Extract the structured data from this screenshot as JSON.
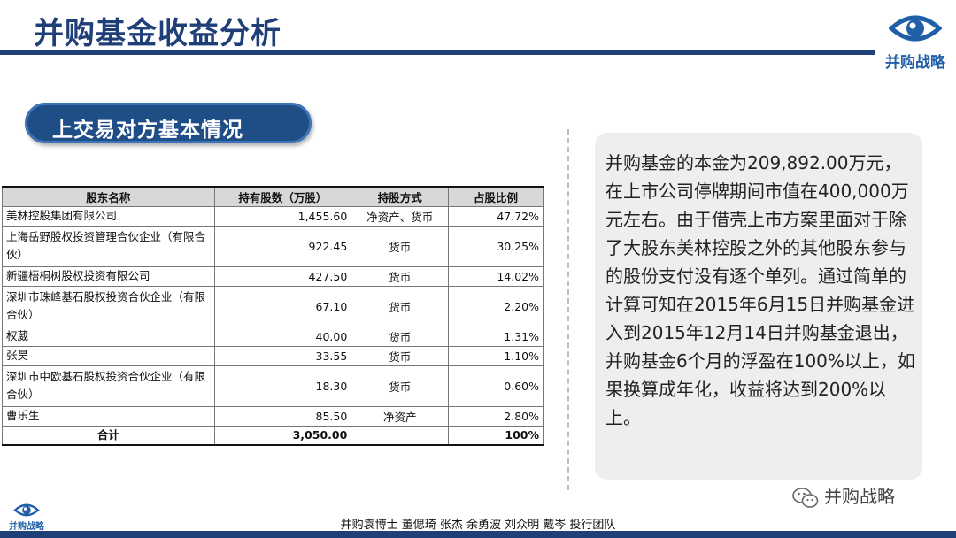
{
  "page": {
    "title": "并购基金收益分析"
  },
  "brand": {
    "logo_text": "并购战略",
    "wechat_text": "并购战略"
  },
  "section": {
    "title": "上交易对方基本情况"
  },
  "table": {
    "headers": [
      "股东名称",
      "持有股数（万股）",
      "持股方式",
      "占股比例"
    ],
    "rows": [
      {
        "name": "美林控股集团有限公司",
        "shares": "1,455.60",
        "mode": "净资产、货币",
        "pct": "47.72%",
        "tall": false
      },
      {
        "name": "上海岳野股权投资管理合伙企业（有限合伙）",
        "shares": "922.45",
        "mode": "货币",
        "pct": "30.25%",
        "tall": true
      },
      {
        "name": "新疆梧桐树股权投资有限公司",
        "shares": "427.50",
        "mode": "货币",
        "pct": "14.02%",
        "tall": false
      },
      {
        "name": "深圳市珠峰基石股权投资合伙企业（有限合伙）",
        "shares": "67.10",
        "mode": "货币",
        "pct": "2.20%",
        "tall": true
      },
      {
        "name": "权葳",
        "shares": "40.00",
        "mode": "货币",
        "pct": "1.31%",
        "tall": false
      },
      {
        "name": "张昊",
        "shares": "33.55",
        "mode": "货币",
        "pct": "1.10%",
        "tall": false
      },
      {
        "name": "深圳市中欧基石股权投资合伙企业（有限合伙）",
        "shares": "18.30",
        "mode": "货币",
        "pct": "0.60%",
        "tall": true
      },
      {
        "name": "曹乐生",
        "shares": "85.50",
        "mode": "净资产",
        "pct": "2.80%",
        "tall": false
      }
    ],
    "total": {
      "label": "合计",
      "shares": "3,050.00",
      "mode": "",
      "pct": "100%"
    }
  },
  "analysis": {
    "text": "并购基金的本金为209,892.00万元，在上市公司停牌期间市值在400,000万元左右。由于借壳上市方案里面对于除了大股东美林控股之外的其他股东参与的股份支付没有逐个单列。通过简单的计算可知在2015年6月15日并购基金进入到2015年12月14日并购基金退出，并购基金6个月的浮盈在100%以上，如果换算成年化，收益将达到200%以上。"
  },
  "footer": {
    "credits": "并购袁博士 董偲琦 张杰 余勇波 刘众明 戴岑 投行团队"
  },
  "colors": {
    "brand_navy": "#1f3f78",
    "pill_blue": "#1f4d86",
    "logo_blue": "#1f5fa8",
    "textbox_bg": "#eeeeee"
  }
}
